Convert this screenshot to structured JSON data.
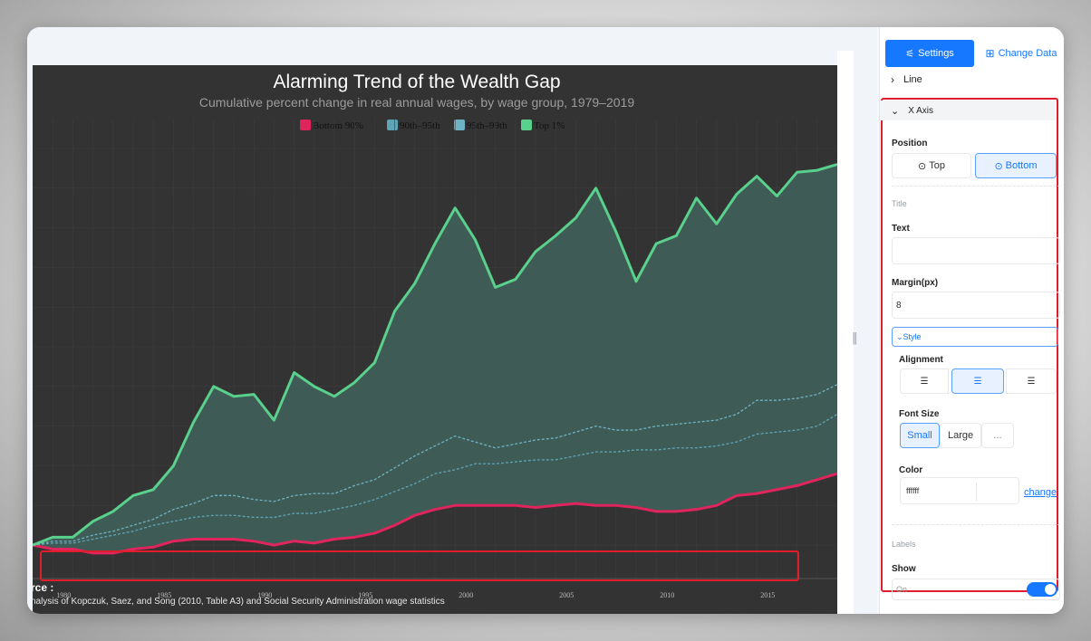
{
  "panel": {
    "tabs": {
      "settings": "Settings",
      "change_data": "Change Data"
    },
    "sections": {
      "line": "Line",
      "x_axis": "X Axis"
    },
    "position": {
      "label": "Position",
      "options": [
        "Top",
        "Bottom"
      ],
      "selected": "Bottom"
    },
    "title_group": {
      "label": "Title",
      "text_label": "Text",
      "text_value": "",
      "margin_label": "Margin(px)",
      "margin_value": "8"
    },
    "style": {
      "toggle_label": "Style",
      "alignment_label": "Alignment",
      "alignment_selected": "center",
      "font_size_label": "Font Size",
      "font_size_options": [
        "Small",
        "Large",
        "..."
      ],
      "font_size_selected": "Small",
      "color_label": "Color",
      "color_value": "ffffff",
      "color_change": "change"
    },
    "labels_group": {
      "label": "Labels",
      "show_label": "Show",
      "show_value": "On"
    }
  },
  "chart_data": {
    "type": "area",
    "title": "Alarming Trend of the Wealth Gap",
    "subtitle": "Cumulative percent change in real annual wages, by wage group, 1979–2019",
    "x_ticks": [
      1980,
      1985,
      1990,
      1995,
      2000,
      2005,
      2010,
      2015
    ],
    "xlim": [
      1979,
      2019
    ],
    "ylim": [
      -10,
      200
    ],
    "grid": true,
    "legend_position": "top",
    "x": [
      1979,
      1980,
      1981,
      1982,
      1983,
      1984,
      1985,
      1986,
      1987,
      1988,
      1989,
      1990,
      1991,
      1992,
      1993,
      1994,
      1995,
      1996,
      1997,
      1998,
      1999,
      2000,
      2001,
      2002,
      2003,
      2004,
      2005,
      2006,
      2007,
      2008,
      2009,
      2010,
      2011,
      2012,
      2013,
      2014,
      2015,
      2016,
      2017,
      2018,
      2019
    ],
    "series": [
      {
        "name": "Bottom 90%",
        "color": "#e0245e",
        "style": "solid",
        "values": [
          0,
          -2,
          -2,
          -4,
          -4,
          -2,
          -1,
          2,
          3,
          3,
          3,
          2,
          0,
          2,
          1,
          3,
          4,
          6,
          10,
          15,
          18,
          20,
          20,
          20,
          20,
          19,
          20,
          21,
          20,
          20,
          19,
          17,
          17,
          18,
          20,
          25,
          26,
          28,
          30,
          33,
          36
        ]
      },
      {
        "name": "90th–95th",
        "color": "#5fa4b5",
        "style": "dashed",
        "values": [
          0,
          1,
          1,
          3,
          5,
          7,
          10,
          12,
          14,
          15,
          15,
          14,
          14,
          16,
          16,
          18,
          20,
          23,
          27,
          31,
          36,
          38,
          41,
          41,
          42,
          43,
          43,
          45,
          47,
          47,
          48,
          48,
          49,
          49,
          50,
          52,
          56,
          57,
          58,
          60,
          66
        ]
      },
      {
        "name": "95th–99th",
        "color": "#6fb3c4",
        "style": "dashed",
        "values": [
          0,
          2,
          2,
          5,
          7,
          10,
          13,
          18,
          21,
          25,
          25,
          23,
          22,
          25,
          26,
          26,
          30,
          33,
          39,
          45,
          50,
          55,
          52,
          49,
          51,
          53,
          54,
          57,
          60,
          58,
          58,
          60,
          61,
          62,
          63,
          66,
          73,
          73,
          74,
          76,
          81
        ]
      },
      {
        "name": "Top 1%",
        "color": "#5ad08d",
        "style": "solid",
        "values": [
          0,
          4,
          4,
          12,
          17,
          25,
          28,
          40,
          62,
          80,
          75,
          76,
          63,
          87,
          80,
          75,
          82,
          92,
          118,
          132,
          152,
          170,
          154,
          130,
          134,
          148,
          156,
          165,
          180,
          158,
          133,
          152,
          156,
          175,
          162,
          177,
          186,
          176,
          188,
          189,
          192
        ]
      }
    ],
    "source_label": "rce :",
    "source_text": "nalysis of Kopczuk, Saez, and Song (2010, Table A3) and Social Security Administration wage statistics"
  }
}
